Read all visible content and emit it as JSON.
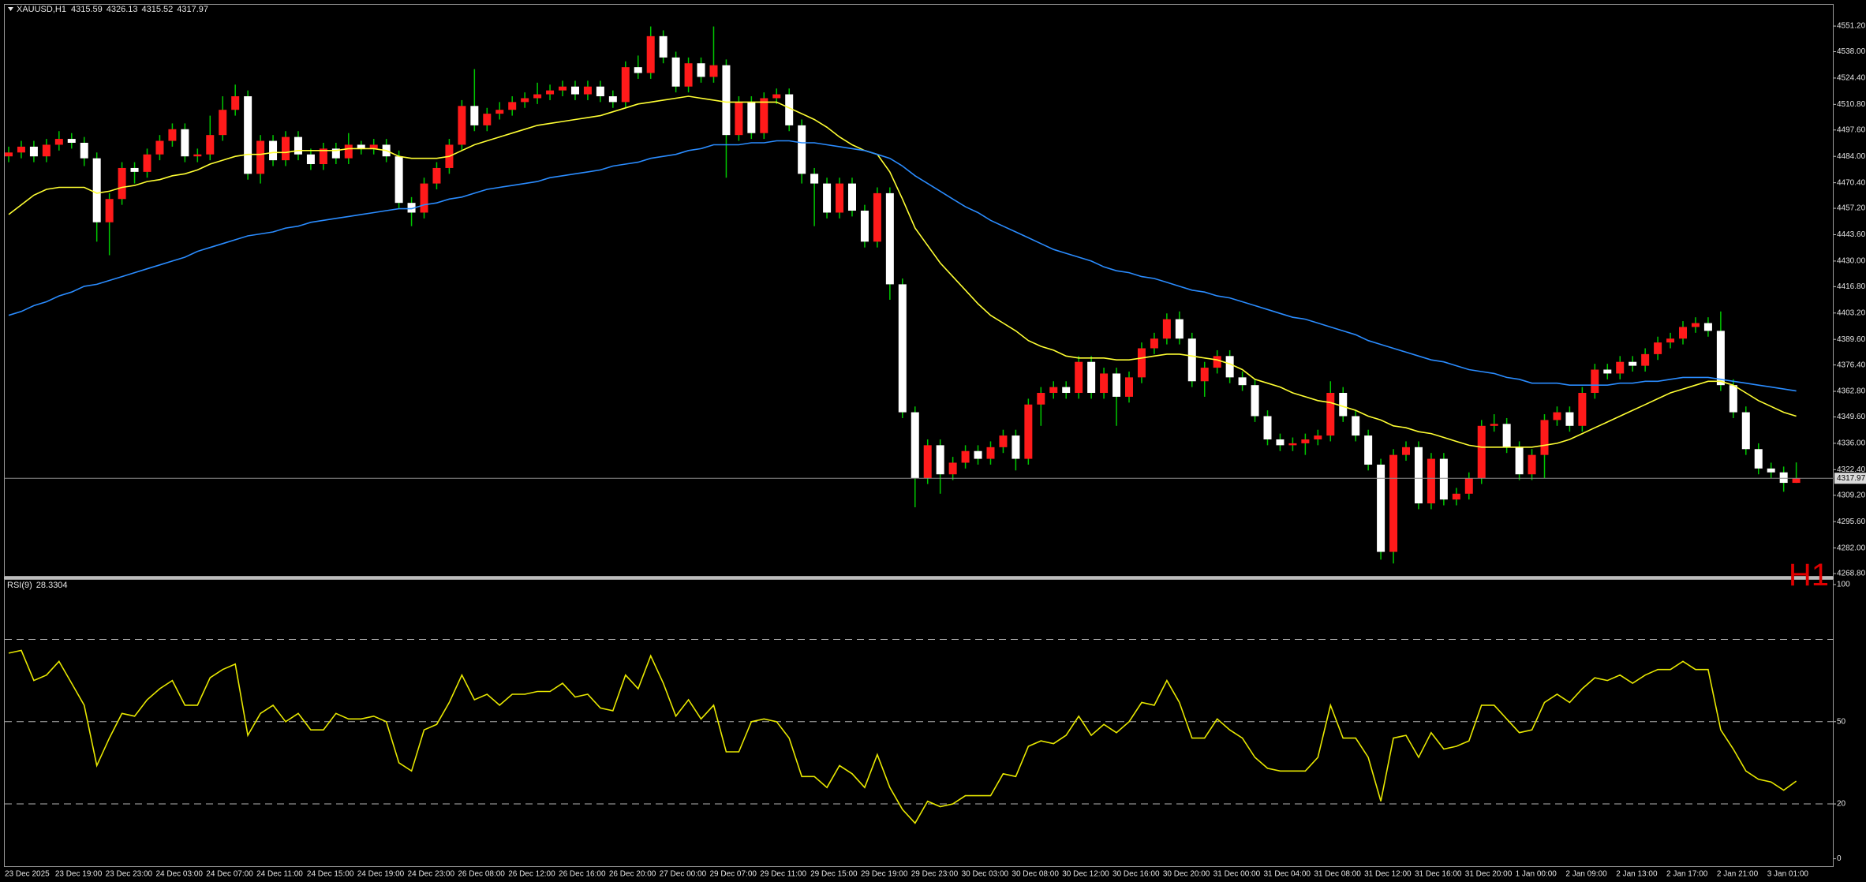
{
  "chart_data": [
    {
      "type": "candlestick",
      "title": "XAUUSD,H1",
      "timeframe": "H1",
      "categories": [
        "23 Dec 2025",
        null,
        null,
        null,
        "23 Dec 19:00",
        null,
        null,
        null,
        "23 Dec 23:00",
        null,
        null,
        null,
        "24 Dec 03:00",
        null,
        null,
        null,
        "24 Dec 07:00",
        null,
        null,
        null,
        "24 Dec 11:00",
        null,
        null,
        null,
        "24 Dec 15:00",
        null,
        null,
        null,
        "24 Dec 19:00",
        null,
        null,
        null,
        "24 Dec 23:00",
        null,
        null,
        null,
        "26 Dec 08:00",
        null,
        null,
        null,
        "26 Dec 12:00",
        null,
        null,
        null,
        "26 Dec 16:00",
        null,
        null,
        null,
        "26 Dec 20:00",
        null,
        null,
        null,
        "27 Dec 00:00",
        null,
        null,
        null,
        "29 Dec 07:00",
        null,
        null,
        null,
        "29 Dec 11:00",
        null,
        null,
        null,
        "29 Dec 15:00",
        null,
        null,
        null,
        "29 Dec 19:00",
        null,
        null,
        null,
        "29 Dec 23:00",
        null,
        null,
        null,
        "30 Dec 03:00",
        null,
        null,
        null,
        "30 Dec 08:00",
        null,
        null,
        null,
        "30 Dec 12:00",
        null,
        null,
        null,
        "30 Dec 16:00",
        null,
        null,
        null,
        "30 Dec 20:00",
        null,
        null,
        null,
        "31 Dec 00:00",
        null,
        null,
        null,
        "31 Dec 04:00",
        null,
        null,
        null,
        "31 Dec 08:00",
        null,
        null,
        null,
        "31 Dec 12:00",
        null,
        null,
        null,
        "31 Dec 16:00",
        null,
        null,
        null,
        "31 Dec 20:00",
        null,
        null,
        null,
        "1 Jan 00:00",
        null,
        null,
        null,
        "2 Jan 09:00",
        null,
        null,
        null,
        "2 Jan 13:00",
        null,
        null,
        null,
        "2 Jan 17:00",
        null,
        null,
        null,
        "2 Jan 21:00",
        null,
        null,
        null,
        "3 Jan 01:00",
        null,
        null
      ],
      "open": [
        4484,
        4486,
        4489,
        4484,
        4490,
        4493,
        4491,
        4483,
        4450,
        4462,
        4478,
        4476,
        4485,
        4492,
        4498,
        4484,
        4485,
        4495,
        4508,
        4515,
        4475,
        4492,
        4482,
        4494,
        4485,
        4480,
        4488,
        4483,
        4490,
        4488,
        4490,
        4484,
        4460,
        4455,
        4470,
        4478,
        4490,
        4510,
        4500,
        4506,
        4508,
        4512,
        4514,
        4516,
        4518,
        4520,
        4516,
        4520,
        4515,
        4512,
        4530,
        4527,
        4546,
        4535,
        4520,
        4532,
        4525,
        4531,
        4495,
        4512,
        4496,
        4514,
        4516,
        4500,
        4475,
        4470,
        4455,
        4470,
        4456,
        4440,
        4465,
        4418,
        4352,
        4318,
        4335,
        4320,
        4326,
        4332,
        4328,
        4334,
        4340,
        4328,
        4356,
        4362,
        4365,
        4362,
        4378,
        4362,
        4372,
        4360,
        4370,
        4385,
        4390,
        4400,
        4390,
        4368,
        4375,
        4381,
        4370,
        4366,
        4350,
        4338,
        4335,
        4336,
        4338,
        4340,
        4362,
        4350,
        4340,
        4325,
        4280,
        4330,
        4334,
        4305,
        4328,
        4307,
        4310,
        4318,
        4345,
        4346,
        4334,
        4320,
        4330,
        4348,
        4352,
        4345,
        4362,
        4374,
        4372,
        4378,
        4376,
        4382,
        4388,
        4390,
        4396,
        4398,
        4394,
        4366,
        4352,
        4333,
        4323,
        4321,
        4315.59
      ],
      "high": [
        4489,
        4492,
        4492,
        4493,
        4497,
        4496,
        4494,
        4486,
        4465,
        4481,
        4481,
        4488,
        4495,
        4501,
        4501,
        4488,
        4505,
        4515,
        4521,
        4518,
        4495,
        4495,
        4497,
        4497,
        4488,
        4491,
        4491,
        4496,
        4492,
        4493,
        4493,
        4487,
        4463,
        4473,
        4481,
        4493,
        4513,
        4529,
        4509,
        4512,
        4515,
        4517,
        4522,
        4521,
        4523,
        4523,
        4523,
        4523,
        4518,
        4533,
        4536,
        4551,
        4549,
        4538,
        4535,
        4535,
        4551,
        4534,
        4515,
        4515,
        4517,
        4519,
        4519,
        4503,
        4478,
        4473,
        4473,
        4473,
        4459,
        4468,
        4468,
        4421,
        4355,
        4338,
        4338,
        4329,
        4335,
        4335,
        4337,
        4343,
        4343,
        4359,
        4365,
        4368,
        4368,
        4381,
        4381,
        4375,
        4375,
        4373,
        4388,
        4393,
        4403,
        4404,
        4393,
        4378,
        4384,
        4384,
        4373,
        4369,
        4353,
        4341,
        4339,
        4341,
        4343,
        4368,
        4365,
        4353,
        4343,
        4328,
        4333,
        4337,
        4337,
        4331,
        4331,
        4313,
        4321,
        4348,
        4351,
        4349,
        4337,
        4333,
        4351,
        4355,
        4355,
        4365,
        4377,
        4377,
        4381,
        4381,
        4385,
        4391,
        4393,
        4399,
        4401,
        4401,
        4404,
        4369,
        4355,
        4336,
        4326,
        4324,
        4326.13
      ],
      "low": [
        4481,
        4483,
        4481,
        4481,
        4487,
        4488,
        4479,
        4440,
        4433,
        4459,
        4470,
        4473,
        4482,
        4489,
        4481,
        4481,
        4482,
        4492,
        4505,
        4472,
        4470,
        4479,
        4479,
        4482,
        4477,
        4477,
        4480,
        4480,
        4485,
        4485,
        4481,
        4457,
        4448,
        4452,
        4467,
        4475,
        4487,
        4497,
        4497,
        4503,
        4505,
        4509,
        4511,
        4513,
        4515,
        4513,
        4513,
        4512,
        4509,
        4509,
        4524,
        4524,
        4532,
        4517,
        4517,
        4522,
        4522,
        4473,
        4492,
        4493,
        4493,
        4511,
        4497,
        4470,
        4448,
        4452,
        4452,
        4453,
        4437,
        4437,
        4410,
        4349,
        4303,
        4315,
        4310,
        4317,
        4323,
        4325,
        4325,
        4331,
        4322,
        4325,
        4345,
        4359,
        4359,
        4359,
        4359,
        4359,
        4345,
        4357,
        4367,
        4382,
        4387,
        4387,
        4365,
        4360,
        4372,
        4367,
        4363,
        4347,
        4335,
        4332,
        4332,
        4330,
        4335,
        4337,
        4347,
        4337,
        4322,
        4276,
        4274,
        4327,
        4302,
        4302,
        4304,
        4304,
        4307,
        4315,
        4342,
        4331,
        4317,
        4317,
        4318,
        4345,
        4342,
        4342,
        4359,
        4369,
        4369,
        4373,
        4373,
        4379,
        4385,
        4387,
        4393,
        4391,
        4363,
        4349,
        4330,
        4320,
        4318,
        4311,
        4315.52
      ],
      "close": [
        4486,
        4489,
        4484,
        4490,
        4493,
        4491,
        4483,
        4450,
        4462,
        4478,
        4476,
        4485,
        4492,
        4498,
        4484,
        4485,
        4495,
        4508,
        4515,
        4475,
        4492,
        4482,
        4494,
        4485,
        4480,
        4488,
        4483,
        4490,
        4488,
        4490,
        4484,
        4460,
        4455,
        4470,
        4478,
        4490,
        4510,
        4500,
        4506,
        4508,
        4512,
        4514,
        4516,
        4518,
        4520,
        4516,
        4520,
        4515,
        4512,
        4530,
        4527,
        4546,
        4535,
        4520,
        4532,
        4525,
        4531,
        4495,
        4512,
        4496,
        4514,
        4516,
        4500,
        4475,
        4470,
        4455,
        4470,
        4456,
        4440,
        4465,
        4418,
        4352,
        4318,
        4335,
        4320,
        4326,
        4332,
        4328,
        4334,
        4340,
        4328,
        4356,
        4362,
        4365,
        4362,
        4378,
        4362,
        4372,
        4360,
        4370,
        4385,
        4390,
        4400,
        4390,
        4368,
        4375,
        4381,
        4370,
        4366,
        4350,
        4338,
        4335,
        4336,
        4338,
        4340,
        4362,
        4350,
        4340,
        4325,
        4280,
        4330,
        4334,
        4305,
        4328,
        4307,
        4310,
        4318,
        4345,
        4346,
        4334,
        4320,
        4330,
        4348,
        4352,
        4345,
        4362,
        4374,
        4372,
        4378,
        4376,
        4382,
        4388,
        4390,
        4396,
        4398,
        4394,
        4366,
        4352,
        4333,
        4323,
        4321,
        4315.59,
        4317.97
      ],
      "up_color": "#ff1a1a",
      "down_color": "#ffffff",
      "wick_color": "#00c800",
      "overlays": [
        {
          "color": "#ffff33",
          "values": [
            4454,
            4459,
            4464,
            4467,
            4468,
            4468,
            4468,
            4465,
            4466,
            4468,
            4469,
            4471,
            4472,
            4474,
            4475,
            4477,
            4480,
            4482,
            4484,
            4485,
            4485,
            4486,
            4486,
            4487,
            4487,
            4487,
            4487,
            4488,
            4488,
            4488,
            4487,
            4484,
            4483,
            4483,
            4483,
            4484,
            4487,
            4490,
            4492,
            4494,
            4496,
            4498,
            4500,
            4501,
            4502,
            4503,
            4504,
            4505,
            4507,
            4509,
            4511,
            4512,
            4513,
            4514,
            4515,
            4514,
            4513,
            4512,
            4512,
            4512,
            4512,
            4512,
            4509,
            4506,
            4503,
            4499,
            4494,
            4490,
            4487,
            4485,
            4476,
            4462,
            4447,
            4438,
            4429,
            4422,
            4415,
            4408,
            4402,
            4398,
            4394,
            4389,
            4386,
            4384,
            4381,
            4380,
            4380,
            4380,
            4379,
            4379,
            4380,
            4381,
            4382,
            4382,
            4381,
            4380,
            4379,
            4377,
            4374,
            4369,
            4367,
            4365,
            4362,
            4360,
            4358,
            4357,
            4355,
            4353,
            4350,
            4348,
            4345,
            4344,
            4342,
            4341,
            4339,
            4337,
            4335,
            4334,
            4334,
            4334,
            4334,
            4334,
            4335,
            4336,
            4338,
            4341,
            4344,
            4347,
            4350,
            4353,
            4356,
            4359,
            4362,
            4364,
            4366,
            4368,
            4368,
            4366,
            4362,
            4358,
            4355,
            4352,
            4350
          ]
        },
        {
          "color": "#2a8cff",
          "values": [
            4402,
            4404,
            4407,
            4409,
            4412,
            4414,
            4417,
            4418,
            4420,
            4422,
            4424,
            4426,
            4428,
            4430,
            4432,
            4435,
            4437,
            4439,
            4441,
            4443,
            4444,
            4445,
            4447,
            4448,
            4450,
            4451,
            4452,
            4453,
            4454,
            4455,
            4456,
            4457,
            4457,
            4459,
            4460,
            4462,
            4463,
            4465,
            4467,
            4468,
            4469,
            4470,
            4471,
            4473,
            4474,
            4475,
            4476,
            4477,
            4479,
            4480,
            4481,
            4483,
            4484,
            4485,
            4487,
            4488,
            4490,
            4490,
            4490,
            4491,
            4491,
            4492,
            4492,
            4491,
            4491,
            4490,
            4489,
            4488,
            4487,
            4485,
            4483,
            4479,
            4474,
            4470,
            4466,
            4462,
            4458,
            4455,
            4451,
            4448,
            4445,
            4442,
            4439,
            4436,
            4434,
            4432,
            4430,
            4427,
            4425,
            4424,
            4422,
            4421,
            4419,
            4417,
            4415,
            4414,
            4412,
            4411,
            4409,
            4407,
            4405,
            4403,
            4401,
            4400,
            4398,
            4396,
            4394,
            4392,
            4389,
            4387,
            4385,
            4383,
            4381,
            4379,
            4378,
            4376,
            4374,
            4373,
            4372,
            4370,
            4369,
            4367,
            4367,
            4367,
            4366,
            4366,
            4366,
            4366,
            4367,
            4367,
            4368,
            4368,
            4369,
            4370,
            4370,
            4370,
            4369,
            4368,
            4367,
            4366,
            4365,
            4364,
            4363
          ]
        }
      ],
      "ylim": [
        4267.6,
        4561.6
      ],
      "yticks": [
        {
          "value": 4551.2,
          "label": "4551.20"
        },
        {
          "value": 4538,
          "label": "4538.00"
        },
        {
          "value": 4524.4,
          "label": "4524.40"
        },
        {
          "value": 4510.8,
          "label": "4510.80"
        },
        {
          "value": 4497.6,
          "label": "4497.60"
        },
        {
          "value": 4484,
          "label": "4484.00"
        },
        {
          "value": 4470.4,
          "label": "4470.40"
        },
        {
          "value": 4457.2,
          "label": "4457.20"
        },
        {
          "value": 4443.6,
          "label": "4443.60"
        },
        {
          "value": 4430,
          "label": "4430.00"
        },
        {
          "value": 4416.8,
          "label": "4416.80"
        },
        {
          "value": 4403.2,
          "label": "4403.20"
        },
        {
          "value": 4389.6,
          "label": "4389.60"
        },
        {
          "value": 4376.4,
          "label": "4376.40"
        },
        {
          "value": 4362.8,
          "label": "4362.80"
        },
        {
          "value": 4349.6,
          "label": "4349.60"
        },
        {
          "value": 4336,
          "label": "4336.00"
        },
        {
          "value": 4322.4,
          "label": "4322.40"
        },
        {
          "value": 4309.2,
          "label": "4309.20"
        },
        {
          "value": 4295.6,
          "label": "4295.60"
        },
        {
          "value": 4282,
          "label": "4282.00"
        },
        {
          "value": 4268.8,
          "label": "4268.80"
        }
      ],
      "grid": false
    },
    {
      "type": "line",
      "title": "RSI(9)",
      "color": "#e8e800",
      "values": [
        75,
        76,
        65,
        67,
        72,
        64,
        56,
        34,
        44,
        53,
        52,
        58,
        62,
        65,
        56,
        56,
        66,
        69,
        71,
        45,
        53,
        56,
        50,
        53,
        47,
        47,
        53,
        51,
        51,
        52,
        50,
        35,
        32,
        47,
        49,
        57,
        67,
        58,
        60,
        56,
        60,
        60,
        61,
        61,
        64,
        59,
        60,
        55,
        54,
        67,
        62,
        74,
        64,
        52,
        58,
        51,
        56,
        39,
        39,
        50,
        51,
        50,
        44,
        30,
        30,
        26,
        34,
        31,
        26,
        38,
        26,
        18,
        13,
        21,
        19,
        20,
        23,
        23,
        23,
        31,
        30,
        41,
        43,
        42,
        45,
        52,
        45,
        49,
        46,
        50,
        57,
        56,
        65,
        57,
        44,
        44,
        51,
        47,
        44,
        37,
        33,
        32,
        32,
        32,
        37,
        56,
        44,
        44,
        37,
        21,
        44,
        45,
        37,
        46,
        40,
        41,
        43,
        56,
        56,
        51,
        46,
        47,
        57,
        60,
        57,
        62,
        66,
        65,
        67,
        64,
        67,
        69,
        69,
        72,
        69,
        69,
        47,
        40,
        32,
        29,
        28,
        25,
        28.3304
      ],
      "ylim": [
        -3,
        102
      ],
      "yticks": [
        0,
        20,
        50,
        100
      ],
      "levels": [
        20,
        50,
        80
      ],
      "grid": false
    }
  ]
}
